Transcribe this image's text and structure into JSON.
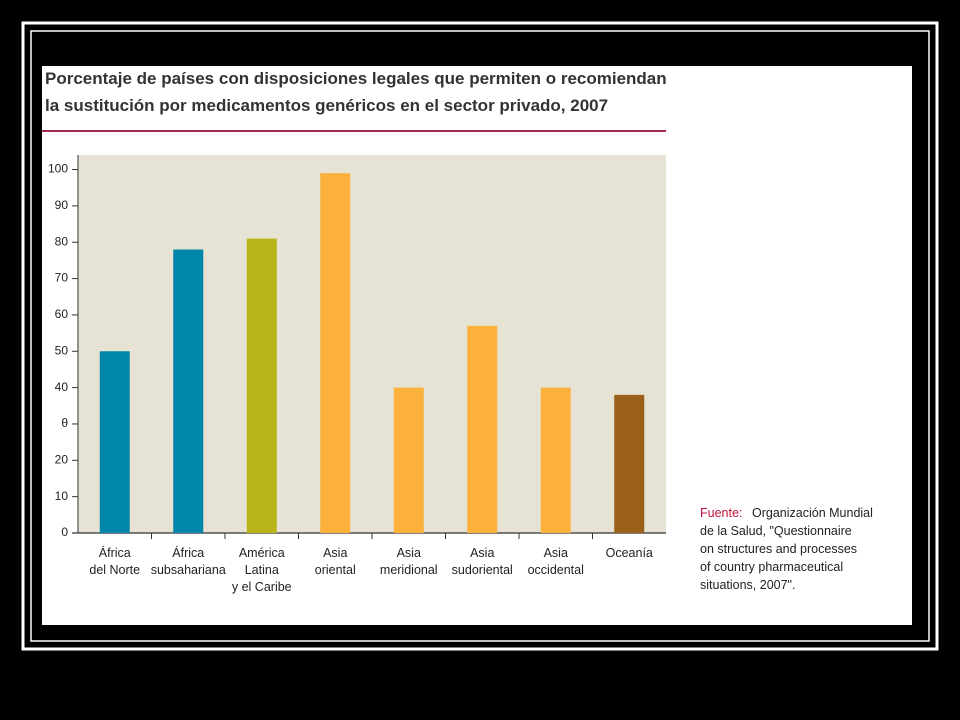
{
  "chart_data": {
    "type": "bar",
    "title": [
      "Porcentaje de países con disposiciones legales que permiten o recomiendan",
      "la sustitución por medicamentos genéricos en el sector privado, 2007"
    ],
    "categories": [
      [
        "África",
        "del Norte"
      ],
      [
        "África",
        "subsahariana"
      ],
      [
        "América",
        "Latina",
        "y el Caribe"
      ],
      [
        "Asia",
        "oriental"
      ],
      [
        "Asia",
        "meridional"
      ],
      [
        "Asia",
        "sudoriental"
      ],
      [
        "Asia",
        "occidental"
      ],
      [
        "Oceanía"
      ]
    ],
    "values": [
      50,
      78,
      81,
      99,
      40,
      57,
      40,
      38
    ],
    "colors": [
      "#0086a9",
      "#0086a9",
      "#b9b518",
      "#fbb13c",
      "#fbb13c",
      "#fbb13c",
      "#fbb13c",
      "#9b611b"
    ],
    "ylim": [
      0,
      104
    ],
    "yticks": [
      0,
      10,
      20,
      {
        "value": 30,
        "label": "θ"
      },
      40,
      50,
      60,
      70,
      80,
      90,
      100
    ],
    "source_label": "Fuente:",
    "source_text": [
      "Organización Mundial",
      "de la Salud, \"Questionnaire",
      "on structures and processes",
      "of country pharmaceutical",
      "situations, 2007\"."
    ]
  }
}
